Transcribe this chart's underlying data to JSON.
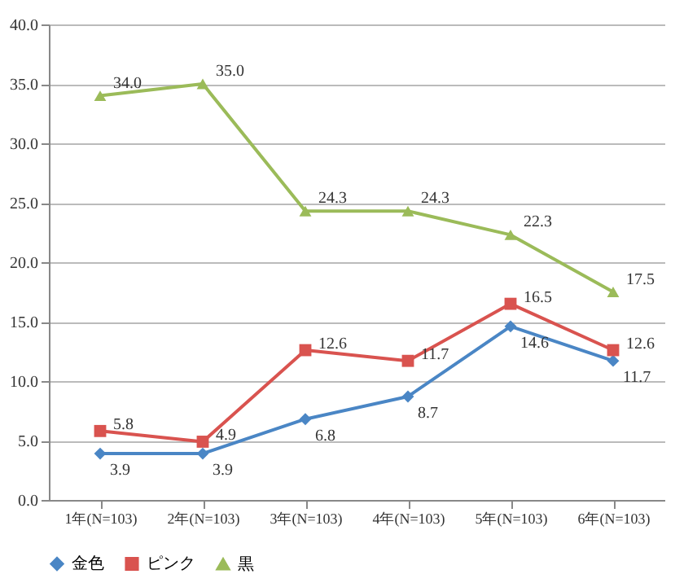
{
  "chart_data": {
    "type": "line",
    "categories": [
      "1年(N=103)",
      "2年(N=103)",
      "3年(N=103)",
      "4年(N=103)",
      "5年(N=103)",
      "6年(N=103)"
    ],
    "series": [
      {
        "name": "金色",
        "color": "#4a86c5",
        "marker": "diamond",
        "values": [
          3.9,
          3.9,
          6.8,
          8.7,
          14.6,
          11.7
        ],
        "value_labels": [
          "3.9",
          "3.9",
          "6.8",
          "8.7",
          "14.6",
          "11.7"
        ]
      },
      {
        "name": "ピンク",
        "color": "#d9534f",
        "marker": "square",
        "values": [
          5.8,
          4.9,
          12.6,
          11.7,
          16.5,
          12.6
        ],
        "value_labels": [
          "5.8",
          "4.9",
          "12.6",
          "11.7",
          "16.5",
          "12.6"
        ]
      },
      {
        "name": "黒",
        "color": "#9bbb59",
        "marker": "triangle",
        "values": [
          34.0,
          35.0,
          24.3,
          24.3,
          22.3,
          17.5
        ],
        "value_labels": [
          "34.0",
          "35.0",
          "24.3",
          "24.3",
          "22.3",
          "17.5"
        ]
      }
    ],
    "ylim": [
      0,
      40
    ],
    "yticks": [
      {
        "value": 0,
        "label": "0.0"
      },
      {
        "value": 5,
        "label": "5.0"
      },
      {
        "value": 10,
        "label": "10.0"
      },
      {
        "value": 15,
        "label": "15.0"
      },
      {
        "value": 20,
        "label": "20.0"
      },
      {
        "value": 25,
        "label": "25.0"
      },
      {
        "value": 30,
        "label": "30.0"
      },
      {
        "value": 35,
        "label": "35.0"
      },
      {
        "value": 40,
        "label": "40.0"
      }
    ],
    "grid": "y",
    "legend": "bottom",
    "line_style": "solid"
  }
}
